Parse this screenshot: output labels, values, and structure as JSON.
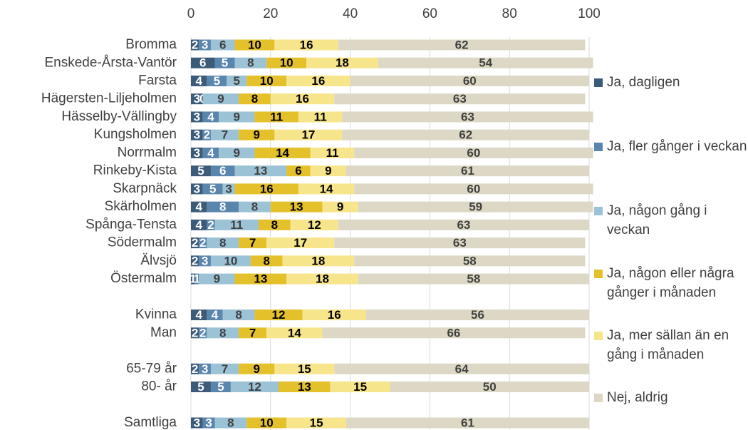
{
  "chart_data": {
    "type": "stacked-barh",
    "categories": [
      "Bromma",
      "Enskede-Årsta-Vantör",
      "Farsta",
      "Hägersten-Liljeholmen",
      "Hässelby-Vällingby",
      "Kungsholmen",
      "Norrmalm",
      "Rinkeby-Kista",
      "Skarpnäck",
      "Skärholmen",
      "Spånga-Tensta",
      "Södermalm",
      "Älvsjö",
      "Östermalm",
      null,
      "Kvinna",
      "Man",
      null,
      "65-79 år",
      "80- år",
      null,
      "Samtliga"
    ],
    "series": [
      {
        "name": "Ja, dagligen",
        "color": "#3b5b78",
        "values": [
          2,
          6,
          4,
          3,
          3,
          3,
          3,
          5,
          3,
          4,
          4,
          2,
          2,
          1,
          null,
          4,
          2,
          null,
          2,
          5,
          null,
          3
        ]
      },
      {
        "name": "Ja, fler gånger i veckan",
        "color": "#5a86ae",
        "values": [
          3,
          5,
          5,
          0,
          4,
          2,
          4,
          6,
          5,
          8,
          2,
          2,
          3,
          1,
          null,
          4,
          2,
          null,
          3,
          5,
          null,
          3
        ]
      },
      {
        "name": "Ja, någon gång i veckan",
        "color": "#9cc2d5",
        "values": [
          6,
          8,
          5,
          9,
          9,
          7,
          9,
          13,
          3,
          8,
          11,
          8,
          10,
          9,
          null,
          8,
          8,
          null,
          7,
          12,
          null,
          8
        ]
      },
      {
        "name": "Ja, någon eller några gånger i månaden",
        "color": "#e4c12b",
        "values": [
          10,
          10,
          10,
          8,
          11,
          9,
          14,
          6,
          16,
          13,
          8,
          7,
          8,
          13,
          null,
          12,
          7,
          null,
          9,
          13,
          null,
          10
        ]
      },
      {
        "name": "Ja, mer sällan än en gång i månaden",
        "color": "#f7e58c",
        "values": [
          16,
          18,
          16,
          16,
          11,
          17,
          11,
          9,
          14,
          9,
          12,
          17,
          18,
          18,
          null,
          16,
          14,
          null,
          15,
          15,
          null,
          15
        ]
      },
      {
        "name": "Nej, aldrig",
        "color": "#ddd8c5",
        "values": [
          62,
          54,
          60,
          63,
          63,
          62,
          60,
          61,
          60,
          59,
          63,
          63,
          58,
          58,
          null,
          56,
          66,
          null,
          64,
          50,
          null,
          61
        ]
      }
    ],
    "xlim": [
      0,
      100
    ],
    "xticks": [
      0,
      20,
      40,
      60,
      80,
      100
    ],
    "grid": true,
    "legend": "right"
  }
}
